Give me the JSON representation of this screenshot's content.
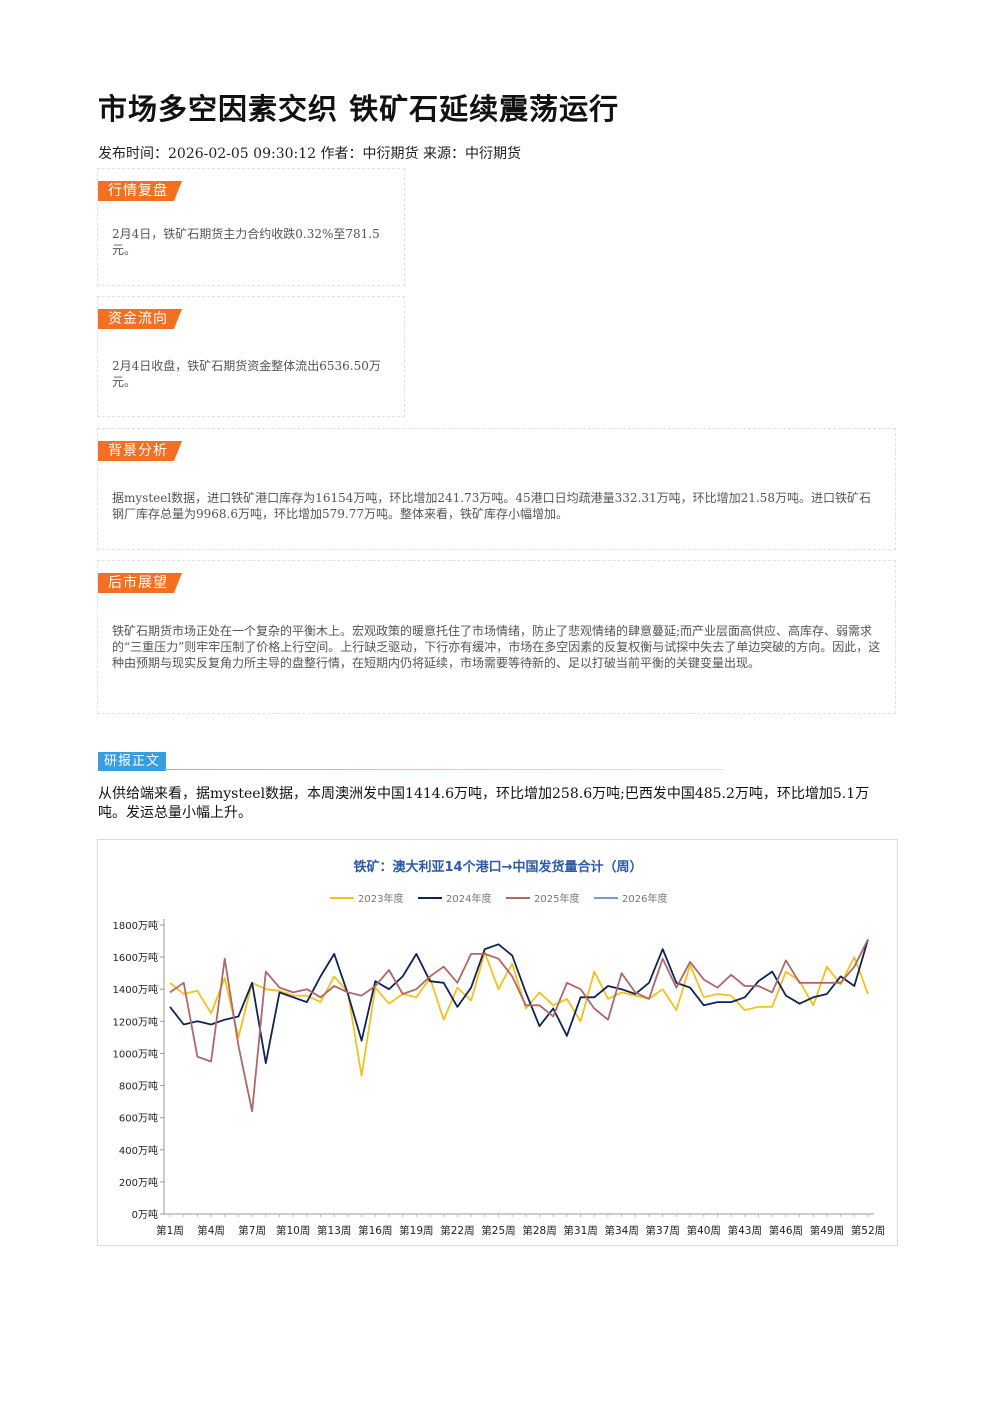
{
  "title": "市场多空因素交织 铁矿石延续震荡运行",
  "meta": "发布时间：2026-02-05 09:30:12 作者：中衍期货 来源：中衍期货",
  "sections": [
    {
      "tag": "行情复盘",
      "text": "2月4日，铁矿石期货主力合约收跌0.32%至781.5元。"
    },
    {
      "tag": "资金流向",
      "text": "2月4日收盘，铁矿石期货资金整体流出6536.50万元。"
    },
    {
      "tag": "背景分析",
      "text": "据mysteel数据，进口铁矿港口库存为16154万吨，环比增加241.73万吨。45港口日均疏港量332.31万吨，环比增加21.58万吨。进口铁矿石钢厂库存总量为9968.6万吨，环比增加579.77万吨。整体来看，铁矿库存小幅增加。"
    },
    {
      "tag": "后市展望",
      "text": "铁矿石期货市场正处在一个复杂的平衡木上。宏观政策的暖意托住了市场情绪，防止了悲观情绪的肆意蔓延;而产业层面高供应、高库存、弱需求的“三重压力”则牢牢压制了价格上行空间。上行缺乏驱动，下行亦有缓冲，市场在多空因素的反复权衡与试探中失去了单边突破的方向。因此，这种由预期与现实反复角力所主导的盘整行情，在短期内仍将延续，市场需要等待新的、足以打破当前平衡的关键变量出现。"
    }
  ],
  "report": {
    "tag": "研报正文",
    "text": "从供给端来看，据mysteel数据，本周澳洲发中国1414.6万吨，环比增加258.6万吨;巴西发中国485.2万吨，环比增加5.1万吨。发运总量小幅上升。"
  },
  "chart_data": {
    "type": "line",
    "title": "铁矿：澳大利亚14个港口→中国发货量合计（周）",
    "ylim": [
      0,
      1800
    ],
    "yticks": [
      "0万吨",
      "200万吨",
      "400万吨",
      "600万吨",
      "800万吨",
      "1000万吨",
      "1200万吨",
      "1400万吨",
      "1600万吨",
      "1800万吨"
    ],
    "xticks": [
      {
        "week": 1,
        "label": "第1周"
      },
      {
        "week": 4,
        "label": "第4周"
      },
      {
        "week": 7,
        "label": "第7周"
      },
      {
        "week": 10,
        "label": "第10周"
      },
      {
        "week": 13,
        "label": "第13周"
      },
      {
        "week": 16,
        "label": "第16周"
      },
      {
        "week": 19,
        "label": "第19周"
      },
      {
        "week": 22,
        "label": "第22周"
      },
      {
        "week": 25,
        "label": "第25周"
      },
      {
        "week": 28,
        "label": "第28周"
      },
      {
        "week": 31,
        "label": "第31周"
      },
      {
        "week": 34,
        "label": "第34周"
      },
      {
        "week": 37,
        "label": "第37周"
      },
      {
        "week": 40,
        "label": "第40周"
      },
      {
        "week": 43,
        "label": "第43周"
      },
      {
        "week": 46,
        "label": "第46周"
      },
      {
        "week": 49,
        "label": "第49周"
      },
      {
        "week": 52,
        "label": "第52周"
      }
    ],
    "legend_position": "top",
    "series": [
      {
        "name": "2023年度",
        "color": "#f2c21b",
        "values": [
          1440,
          1370,
          1390,
          1250,
          1470,
          1100,
          1440,
          1400,
          1390,
          1360,
          1360,
          1320,
          1480,
          1380,
          860,
          1410,
          1310,
          1370,
          1350,
          1470,
          1210,
          1410,
          1330,
          1630,
          1400,
          1560,
          1280,
          1380,
          1300,
          1340,
          1200,
          1510,
          1340,
          1380,
          1360,
          1340,
          1400,
          1270,
          1550,
          1350,
          1370,
          1360,
          1270,
          1290,
          1290,
          1510,
          1450,
          1300,
          1540,
          1430,
          1600,
          1370
        ]
      },
      {
        "name": "2024年度",
        "color": "#0e2457",
        "values": [
          1290,
          1180,
          1200,
          1180,
          1210,
          1230,
          1440,
          940,
          1380,
          1350,
          1320,
          1480,
          1620,
          1370,
          1080,
          1450,
          1400,
          1480,
          1620,
          1450,
          1440,
          1290,
          1410,
          1650,
          1680,
          1610,
          1380,
          1170,
          1280,
          1110,
          1350,
          1350,
          1420,
          1400,
          1370,
          1440,
          1650,
          1440,
          1410,
          1300,
          1320,
          1320,
          1350,
          1450,
          1510,
          1360,
          1310,
          1350,
          1370,
          1480,
          1420,
          1710
        ]
      },
      {
        "name": "2025年度",
        "color": "#b0676a",
        "values": [
          1380,
          1440,
          980,
          950,
          1590,
          1050,
          640,
          1510,
          1410,
          1380,
          1400,
          1350,
          1420,
          1380,
          1360,
          1420,
          1520,
          1370,
          1400,
          1480,
          1540,
          1440,
          1620,
          1620,
          1590,
          1480,
          1300,
          1300,
          1230,
          1440,
          1400,
          1280,
          1210,
          1500,
          1380,
          1340,
          1590,
          1410,
          1570,
          1460,
          1410,
          1490,
          1420,
          1420,
          1380,
          1580,
          1440,
          1440,
          1440,
          1440,
          1540,
          1710
        ]
      },
      {
        "name": "2026年度",
        "color": "#7b9bd0",
        "values": [
          1380
        ]
      }
    ]
  }
}
